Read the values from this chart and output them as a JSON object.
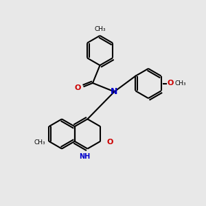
{
  "background_color": "#e8e8e8",
  "bond_color": "#000000",
  "N_color": "#0000cc",
  "O_color": "#cc0000",
  "lw": 1.5,
  "ring_r": 0.72,
  "xlim": [
    0,
    10
  ],
  "ylim": [
    0,
    10
  ]
}
